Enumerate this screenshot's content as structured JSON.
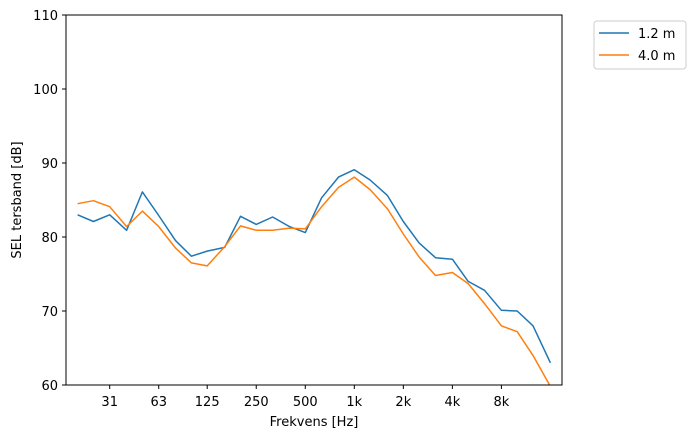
{
  "chart_data": {
    "type": "line",
    "xlabel": "Frekvens [Hz]",
    "ylabel": "SEL tersband [dB]",
    "x_scale": "log",
    "x_tick_values": [
      31.5,
      63,
      125,
      250,
      500,
      1000,
      2000,
      4000,
      8000
    ],
    "x_tick_labels": [
      "31",
      "63",
      "125",
      "250",
      "500",
      "1k",
      "2k",
      "4k",
      "8k"
    ],
    "ylim": [
      60,
      110
    ],
    "y_ticks": [
      60,
      70,
      80,
      90,
      100,
      110
    ],
    "grid": false,
    "legend_placement": "outside-top-right",
    "x": [
      20,
      25,
      31.5,
      40,
      50,
      63,
      80,
      100,
      125,
      160,
      200,
      250,
      315,
      400,
      500,
      630,
      800,
      1000,
      1250,
      1600,
      2000,
      2500,
      3150,
      4000,
      5000,
      6300,
      8000,
      10000,
      12500,
      16000
    ],
    "series": [
      {
        "name": "1.2 m",
        "color": "#1f77b4",
        "values": [
          83.0,
          82.1,
          83.0,
          80.9,
          86.1,
          82.9,
          79.5,
          77.4,
          78.1,
          78.6,
          82.8,
          81.7,
          82.7,
          81.4,
          80.6,
          85.3,
          88.1,
          89.1,
          87.7,
          85.6,
          82.1,
          79.2,
          77.2,
          77.0,
          74.0,
          72.8,
          70.1,
          70.0,
          68.0,
          63.0
        ]
      },
      {
        "name": "4.0 m",
        "color": "#ff7f0e",
        "values": [
          84.5,
          84.9,
          84.1,
          81.4,
          83.5,
          81.4,
          78.5,
          76.5,
          76.1,
          78.7,
          81.5,
          80.9,
          80.9,
          81.2,
          81.1,
          84.1,
          86.7,
          88.1,
          86.4,
          83.8,
          80.4,
          77.3,
          74.8,
          75.2,
          73.7,
          71.0,
          68.0,
          67.2,
          64.0,
          59.8
        ]
      }
    ]
  }
}
